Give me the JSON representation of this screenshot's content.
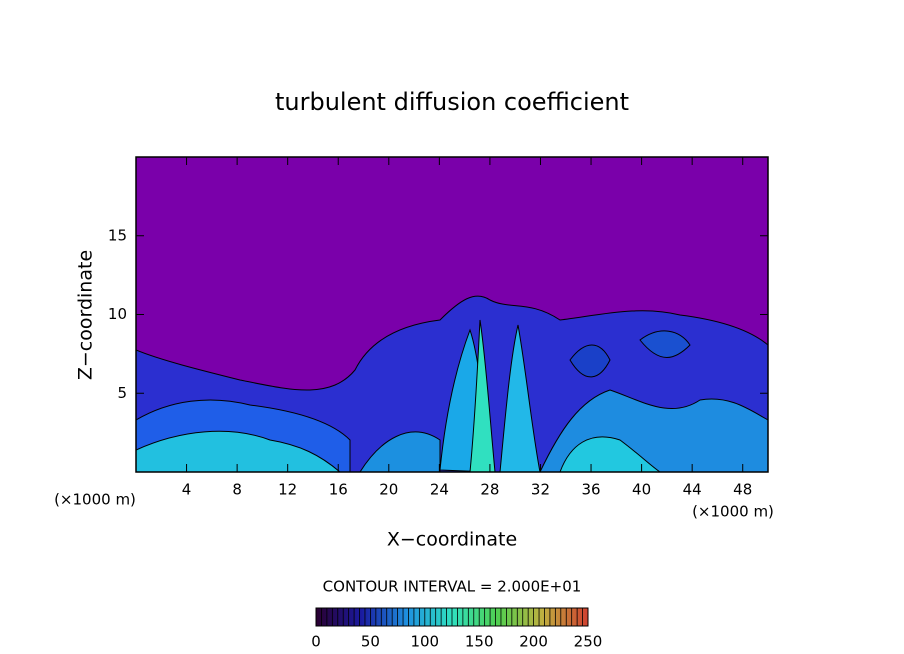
{
  "chart_data": {
    "type": "heatmap",
    "title": "turbulent diffusion coefficient",
    "x_label": "X−coordinate",
    "y_label": "Z−coordinate",
    "x_units": "(×1000 m)",
    "y_units": "(×1000 m)",
    "xlim": [
      0,
      50
    ],
    "xticks": [
      4,
      8,
      12,
      16,
      20,
      24,
      28,
      32,
      36,
      40,
      44,
      48
    ],
    "ylim": [
      0,
      20
    ],
    "yticks": [
      5,
      10,
      15
    ],
    "contour_label": "CONTOUR INTERVAL = 2.000E+01",
    "colorbar": {
      "lim": [
        0,
        250
      ],
      "ticks": [
        0,
        50,
        100,
        150,
        200,
        250
      ],
      "colors": [
        "#2a0030",
        "#1a1aa0",
        "#1e90e0",
        "#30e0c0",
        "#50d050",
        "#c0b040",
        "#d04030"
      ]
    }
  }
}
